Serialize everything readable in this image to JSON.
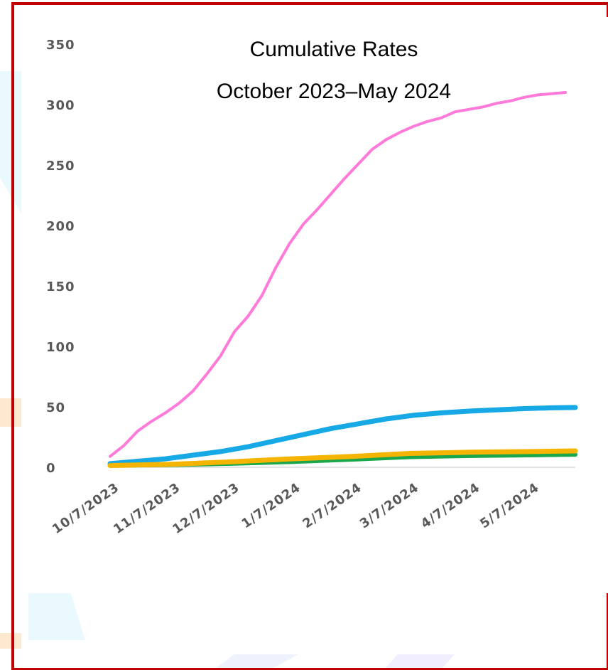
{
  "chart_data": {
    "type": "line",
    "title_lines": [
      "Cumulative Rates",
      "October 2023–May 2024"
    ],
    "xlabel": "",
    "ylabel": "",
    "ylim": [
      0,
      350
    ],
    "yticks": [
      0,
      50,
      100,
      150,
      200,
      250,
      300,
      350
    ],
    "x_dates": [
      "2023-10-07",
      "2023-11-07",
      "2023-12-07",
      "2024-01-07",
      "2024-02-07",
      "2024-03-07",
      "2024-04-07",
      "2024-05-07"
    ],
    "x_tick_labels": [
      "10/7/2023",
      "11/7/2023",
      "12/7/2023",
      "1/7/2024",
      "2/7/2024",
      "3/7/2024",
      "4/7/2024",
      "5/7/2024"
    ],
    "x_start": "2023-10-07",
    "x_end": "2024-05-30",
    "grid": false,
    "legend": "none",
    "series": [
      {
        "color": "#ff7ad9",
        "points": [
          [
            "2023-10-07",
            9
          ],
          [
            "2023-10-14",
            18
          ],
          [
            "2023-10-21",
            30
          ],
          [
            "2023-10-28",
            38
          ],
          [
            "2023-11-04",
            45
          ],
          [
            "2023-11-11",
            53
          ],
          [
            "2023-11-18",
            63
          ],
          [
            "2023-11-25",
            77
          ],
          [
            "2023-12-02",
            92
          ],
          [
            "2023-12-09",
            112
          ],
          [
            "2023-12-16",
            125
          ],
          [
            "2023-12-23",
            142
          ],
          [
            "2023-12-30",
            165
          ],
          [
            "2024-01-06",
            185
          ],
          [
            "2024-01-13",
            201
          ],
          [
            "2024-01-20",
            213
          ],
          [
            "2024-01-27",
            226
          ],
          [
            "2024-02-03",
            239
          ],
          [
            "2024-02-10",
            251
          ],
          [
            "2024-02-17",
            263
          ],
          [
            "2024-02-24",
            271
          ],
          [
            "2024-03-02",
            277
          ],
          [
            "2024-03-09",
            282
          ],
          [
            "2024-03-16",
            286
          ],
          [
            "2024-03-23",
            289
          ],
          [
            "2024-03-30",
            294
          ],
          [
            "2024-04-06",
            296
          ],
          [
            "2024-04-13",
            298
          ],
          [
            "2024-04-20",
            301
          ],
          [
            "2024-04-27",
            303
          ],
          [
            "2024-05-04",
            306
          ],
          [
            "2024-05-11",
            308
          ],
          [
            "2024-05-18",
            309
          ],
          [
            "2024-05-25",
            310
          ]
        ],
        "width": 4
      },
      {
        "color": "#17a8e6",
        "points": [
          [
            "2023-10-07",
            3
          ],
          [
            "2023-10-21",
            5
          ],
          [
            "2023-11-04",
            7
          ],
          [
            "2023-11-18",
            10
          ],
          [
            "2023-12-02",
            13
          ],
          [
            "2023-12-16",
            17
          ],
          [
            "2023-12-30",
            22
          ],
          [
            "2024-01-13",
            27
          ],
          [
            "2024-01-27",
            32
          ],
          [
            "2024-02-10",
            36
          ],
          [
            "2024-02-24",
            40
          ],
          [
            "2024-03-09",
            43
          ],
          [
            "2024-03-23",
            45
          ],
          [
            "2024-04-06",
            46.5
          ],
          [
            "2024-04-20",
            47.5
          ],
          [
            "2024-05-04",
            48.5
          ],
          [
            "2024-05-18",
            49.2
          ],
          [
            "2024-05-30",
            49.5
          ]
        ],
        "width": 7
      },
      {
        "color": "#1aa64a",
        "points": [
          [
            "2023-10-07",
            1.5
          ],
          [
            "2023-11-07",
            2
          ],
          [
            "2023-12-07",
            3
          ],
          [
            "2024-01-07",
            4.5
          ],
          [
            "2024-02-07",
            6.5
          ],
          [
            "2024-03-07",
            8.5
          ],
          [
            "2024-04-07",
            9.5
          ],
          [
            "2024-05-07",
            10
          ],
          [
            "2024-05-30",
            10.5
          ]
        ],
        "width": 6
      },
      {
        "color": "#f5b400",
        "points": [
          [
            "2023-10-07",
            1.5
          ],
          [
            "2023-11-07",
            2.5
          ],
          [
            "2023-12-07",
            4.5
          ],
          [
            "2024-01-07",
            7
          ],
          [
            "2024-02-07",
            9
          ],
          [
            "2024-03-07",
            11.5
          ],
          [
            "2024-04-07",
            12.5
          ],
          [
            "2024-05-07",
            13
          ],
          [
            "2024-05-30",
            13.5
          ]
        ],
        "width": 7
      }
    ]
  },
  "colors": {
    "frame_border": "#c00000",
    "tick_text": "#595959",
    "axis_line": "#d9d9d9",
    "bg_accent_blue": "#e8f8fd",
    "bg_accent_orange": "#fde9cf"
  }
}
